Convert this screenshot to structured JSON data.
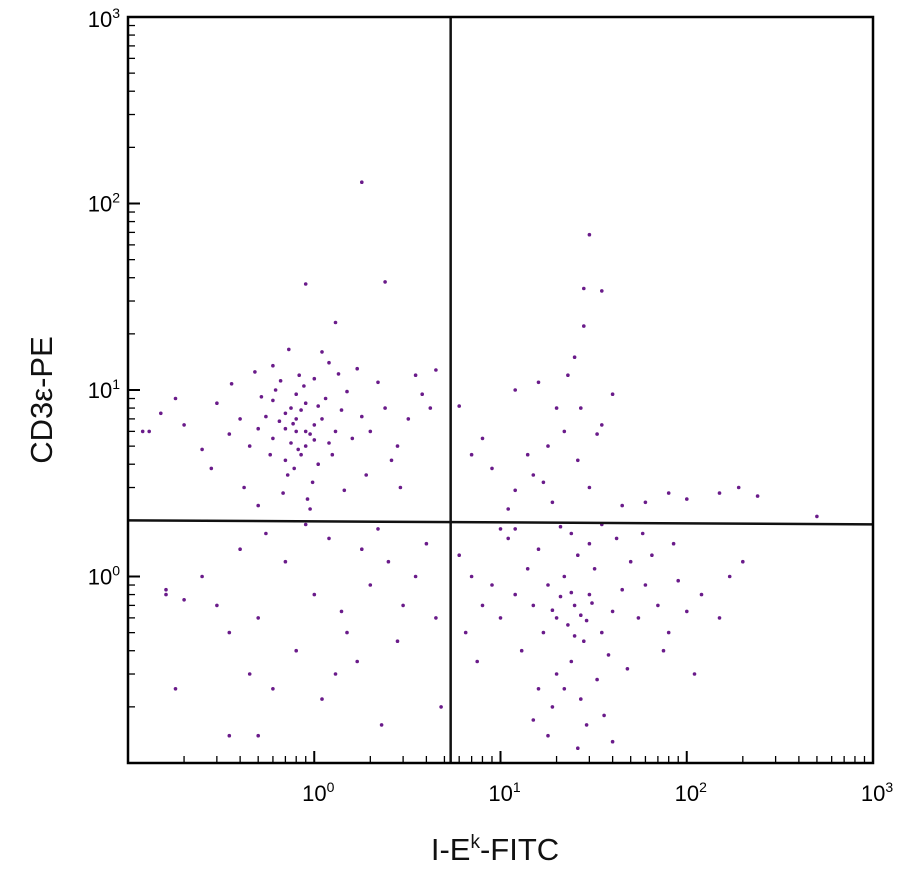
{
  "chart_data": {
    "type": "scatter",
    "title": "",
    "xlabel": {
      "base": "I-E",
      "sup": "k",
      "suffix": "-FITC"
    },
    "ylabel": "CD3ε-PE",
    "xscale": "log",
    "yscale": "log",
    "xlim": [
      0.1,
      1000
    ],
    "ylim": [
      0.1,
      1000
    ],
    "x_ticks": [
      {
        "base": "10",
        "exp": "0"
      },
      {
        "base": "10",
        "exp": "1"
      },
      {
        "base": "10",
        "exp": "2"
      },
      {
        "base": "10",
        "exp": "3"
      }
    ],
    "y_ticks": [
      {
        "base": "10",
        "exp": "0"
      },
      {
        "base": "10",
        "exp": "1"
      },
      {
        "base": "10",
        "exp": "2"
      },
      {
        "base": "10",
        "exp": "3"
      }
    ],
    "gates": {
      "x": 5.4,
      "y": 2.0
    },
    "point_color": "#6a1b8a",
    "grid": false,
    "legend": "none",
    "series": [
      {
        "values": [
          [
            0.8,
            6.0
          ],
          [
            0.7,
            7.5
          ],
          [
            0.9,
            5.0
          ],
          [
            1.0,
            6.5
          ],
          [
            0.6,
            5.5
          ],
          [
            0.75,
            8.0
          ],
          [
            0.85,
            4.5
          ],
          [
            1.1,
            7.0
          ],
          [
            0.65,
            6.8
          ],
          [
            0.95,
            5.8
          ],
          [
            0.55,
            7.2
          ],
          [
            0.8,
            9.5
          ],
          [
            1.2,
            5.2
          ],
          [
            0.7,
            4.2
          ],
          [
            0.9,
            8.5
          ],
          [
            1.05,
            4.0
          ],
          [
            0.6,
            8.8
          ],
          [
            0.5,
            6.2
          ],
          [
            1.3,
            6.0
          ],
          [
            0.78,
            3.8
          ],
          [
            0.88,
            10.5
          ],
          [
            0.72,
            3.5
          ],
          [
            1.15,
            9.0
          ],
          [
            0.45,
            5.0
          ],
          [
            1.4,
            7.8
          ],
          [
            0.62,
            10.0
          ],
          [
            0.98,
            3.2
          ],
          [
            0.58,
            4.5
          ],
          [
            1.25,
            4.5
          ],
          [
            0.83,
            12.0
          ],
          [
            0.4,
            7.0
          ],
          [
            1.6,
            5.5
          ],
          [
            0.68,
            2.8
          ],
          [
            1.0,
            11.5
          ],
          [
            0.52,
            9.2
          ],
          [
            1.5,
            9.8
          ],
          [
            0.35,
            5.8
          ],
          [
            0.92,
            2.6
          ],
          [
            1.8,
            7.2
          ],
          [
            0.3,
            8.5
          ],
          [
            2.0,
            6.0
          ],
          [
            0.25,
            4.8
          ],
          [
            2.4,
            8.0
          ],
          [
            0.2,
            6.5
          ],
          [
            2.8,
            5.0
          ],
          [
            0.18,
            9.0
          ],
          [
            3.2,
            7.0
          ],
          [
            1.9,
            3.5
          ],
          [
            0.42,
            3.0
          ],
          [
            2.2,
            11.0
          ],
          [
            0.48,
            12.5
          ],
          [
            1.7,
            13.0
          ],
          [
            0.36,
            10.8
          ],
          [
            2.6,
            4.2
          ],
          [
            3.8,
            9.5
          ],
          [
            0.28,
            3.8
          ],
          [
            1.2,
            14.0
          ],
          [
            0.6,
            13.5
          ],
          [
            3.5,
            12.0
          ],
          [
            0.15,
            7.5
          ],
          [
            0.13,
            6.0
          ],
          [
            2.9,
            3.0
          ],
          [
            1.45,
            2.9
          ],
          [
            0.5,
            2.4
          ],
          [
            0.95,
            2.3
          ],
          [
            1.1,
            16.0
          ],
          [
            0.73,
            16.5
          ],
          [
            4.2,
            8.0
          ],
          [
            4.5,
            12.8
          ],
          [
            1.35,
            12.2
          ],
          [
            0.66,
            11.2
          ],
          [
            1.05,
            8.2
          ],
          [
            0.8,
            7.0
          ],
          [
            0.9,
            6.0
          ],
          [
            0.75,
            5.2
          ],
          [
            0.85,
            7.8
          ],
          [
            0.7,
            6.2
          ],
          [
            1.0,
            5.4
          ],
          [
            0.82,
            4.8
          ],
          [
            0.77,
            6.6
          ],
          [
            1.0,
            0.8
          ],
          [
            0.5,
            0.6
          ],
          [
            1.5,
            0.5
          ],
          [
            0.7,
            1.2
          ],
          [
            2.0,
            0.9
          ],
          [
            0.4,
            1.4
          ],
          [
            1.2,
            1.6
          ],
          [
            2.5,
            1.2
          ],
          [
            0.3,
            0.7
          ],
          [
            0.8,
            0.4
          ],
          [
            3.0,
            0.7
          ],
          [
            1.7,
            0.35
          ],
          [
            0.6,
            0.25
          ],
          [
            2.2,
            1.8
          ],
          [
            0.9,
            1.9
          ],
          [
            0.35,
            0.5
          ],
          [
            4.0,
            1.5
          ],
          [
            1.3,
            0.3
          ],
          [
            0.25,
            1.0
          ],
          [
            2.8,
            0.45
          ],
          [
            0.45,
            0.3
          ],
          [
            3.5,
            1.0
          ],
          [
            1.8,
            1.4
          ],
          [
            0.55,
            1.7
          ],
          [
            4.5,
            0.6
          ],
          [
            0.2,
            0.75
          ],
          [
            0.16,
            0.85
          ],
          [
            0.16,
            0.8
          ],
          [
            0.18,
            0.25
          ],
          [
            0.35,
            0.14
          ],
          [
            0.5,
            0.14
          ],
          [
            2.3,
            0.16
          ],
          [
            4.8,
            0.2
          ],
          [
            1.1,
            0.22
          ],
          [
            1.4,
            0.65
          ],
          [
            25,
            0.7
          ],
          [
            20,
            0.6
          ],
          [
            30,
            0.8
          ],
          [
            18,
            0.9
          ],
          [
            35,
            0.5
          ],
          [
            22,
            1.0
          ],
          [
            28,
            0.45
          ],
          [
            15,
            0.7
          ],
          [
            40,
            0.65
          ],
          [
            24,
            0.35
          ],
          [
            32,
            1.1
          ],
          [
            17,
            0.5
          ],
          [
            45,
            0.85
          ],
          [
            26,
            1.3
          ],
          [
            12,
            0.8
          ],
          [
            55,
            0.6
          ],
          [
            20,
            0.3
          ],
          [
            30,
            1.5
          ],
          [
            14,
            1.1
          ],
          [
            38,
            0.38
          ],
          [
            22,
            0.25
          ],
          [
            60,
            0.9
          ],
          [
            10,
            0.6
          ],
          [
            50,
            1.2
          ],
          [
            27,
            0.22
          ],
          [
            16,
            1.4
          ],
          [
            70,
            0.7
          ],
          [
            9,
            0.9
          ],
          [
            42,
            1.6
          ],
          [
            19,
            0.2
          ],
          [
            33,
            0.28
          ],
          [
            80,
            0.5
          ],
          [
            8,
            0.7
          ],
          [
            65,
            1.3
          ],
          [
            24,
            1.7
          ],
          [
            13,
            0.4
          ],
          [
            36,
            0.18
          ],
          [
            90,
            0.95
          ],
          [
            7,
            1.0
          ],
          [
            21,
            1.85
          ],
          [
            48,
            0.32
          ],
          [
            11,
            1.6
          ],
          [
            75,
            0.4
          ],
          [
            29,
            0.16
          ],
          [
            100,
            0.65
          ],
          [
            6.5,
            0.5
          ],
          [
            58,
            1.7
          ],
          [
            18,
            0.14
          ],
          [
            120,
            0.8
          ],
          [
            6,
            1.3
          ],
          [
            26,
            0.12
          ],
          [
            40,
            0.13
          ],
          [
            15,
            0.17
          ],
          [
            150,
            0.6
          ],
          [
            85,
            1.5
          ],
          [
            7.5,
            0.35
          ],
          [
            110,
            0.3
          ],
          [
            35,
            1.9
          ],
          [
            12,
            1.8
          ],
          [
            170,
            1.0
          ],
          [
            200,
            1.2
          ],
          [
            16,
            0.25
          ],
          [
            23,
            0.55
          ],
          [
            27,
            0.62
          ],
          [
            31,
            0.72
          ],
          [
            21,
            0.78
          ],
          [
            25,
            0.48
          ],
          [
            19,
            0.66
          ],
          [
            29,
            0.58
          ],
          [
            24,
            0.82
          ],
          [
            10,
            1.8
          ],
          [
            12,
            2.9
          ],
          [
            15,
            3.5
          ],
          [
            18,
            5.0
          ],
          [
            20,
            8.0
          ],
          [
            23,
            12.0
          ],
          [
            25,
            15.0
          ],
          [
            28,
            22.0
          ],
          [
            30,
            68.0
          ],
          [
            28,
            35.0
          ],
          [
            35,
            34.0
          ],
          [
            40,
            9.5
          ],
          [
            22,
            6.0
          ],
          [
            17,
            3.2
          ],
          [
            8,
            5.5
          ],
          [
            9,
            3.8
          ],
          [
            14,
            4.5
          ],
          [
            26,
            4.2
          ],
          [
            33,
            5.8
          ],
          [
            30,
            3.0
          ],
          [
            45,
            2.4
          ],
          [
            60,
            2.5
          ],
          [
            80,
            2.8
          ],
          [
            100,
            2.6
          ],
          [
            150,
            2.8
          ],
          [
            190,
            3.0
          ],
          [
            240,
            2.7
          ],
          [
            500,
            2.1
          ],
          [
            11,
            2.3
          ],
          [
            7,
            4.5
          ],
          [
            6,
            8.2
          ],
          [
            12,
            10.0
          ],
          [
            16,
            11.0
          ],
          [
            27,
            8.0
          ],
          [
            35,
            6.5
          ],
          [
            19,
            2.5
          ],
          [
            1.8,
            130.0
          ],
          [
            0.9,
            37.0
          ],
          [
            2.4,
            38.0
          ],
          [
            1.3,
            23.0
          ],
          [
            0.12,
            6.0
          ]
        ]
      }
    ]
  }
}
